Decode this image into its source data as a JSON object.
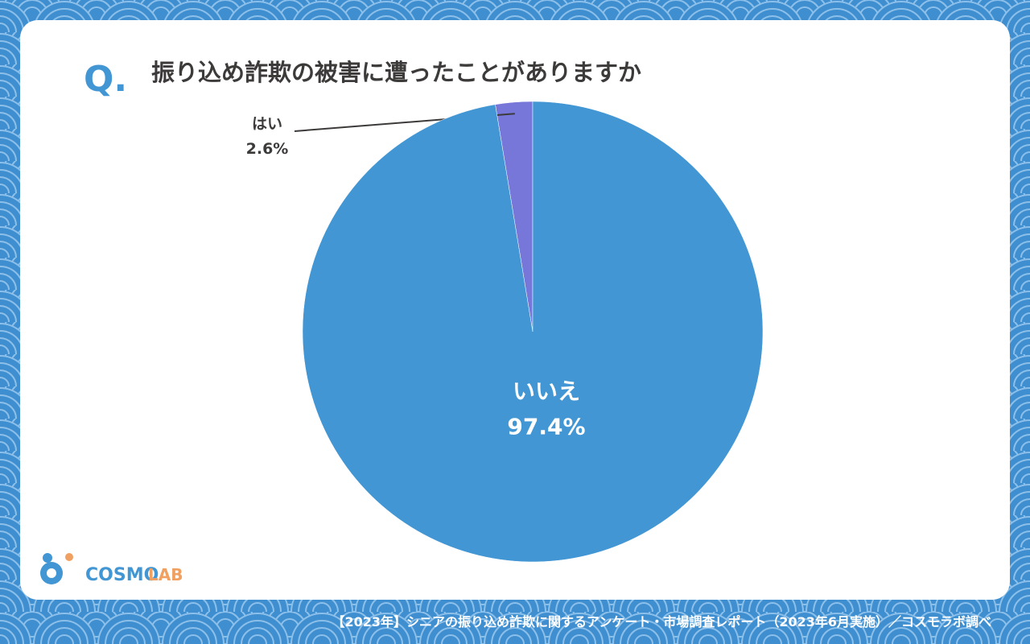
{
  "header": {
    "marker": "Q."
  },
  "chart_data": {
    "type": "pie",
    "title": "振り込め詐欺の被害に遭ったことがありますか",
    "categories": [
      "はい",
      "いいえ"
    ],
    "values": [
      2.6,
      97.4
    ],
    "value_labels": [
      "2.6%",
      "97.4%"
    ],
    "colors": [
      "#7677d9",
      "#4196d3"
    ]
  },
  "logo": {
    "part1": "COSMO",
    "part2": "LAB"
  },
  "footer": {
    "source": "【2023年】シニアの振り込め詐欺に関するアンケート・市場調査レポート（2023年6月実施）／コスモラボ調べ"
  }
}
